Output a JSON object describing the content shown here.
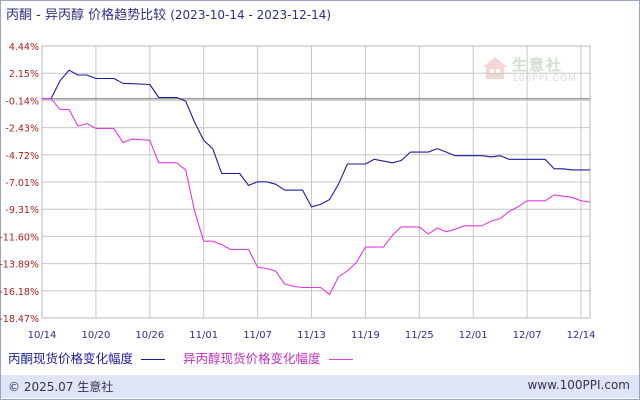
{
  "title": {
    "main": "丙酮 - 异丙醇 价格趋势比较",
    "range": "(2023-10-14 - 2023-12-14)"
  },
  "logo": {
    "name_cn": "生意社",
    "name_en": "100PPI.COM"
  },
  "footer": {
    "left": "© 2025.07 生意社",
    "right": "www.100PPI.com"
  },
  "colors": {
    "series1": "#1c1c9e",
    "series2": "#e23ae2",
    "grid": "#c8c8c8",
    "baseline": "#888888",
    "axis_text": "#b02020",
    "xaxis_text": "#2d2e86",
    "footer_bg": "#dfe4f7"
  },
  "chart_data": {
    "type": "line",
    "title": "丙酮 - 异丙醇 价格趋势比较",
    "x_start": "2023-10-14",
    "x_end": "2023-12-14",
    "xlim": [
      0,
      61
    ],
    "x_ticks": [
      {
        "x": 0,
        "label": "10/14"
      },
      {
        "x": 6,
        "label": "10/20"
      },
      {
        "x": 12,
        "label": "10/26"
      },
      {
        "x": 18,
        "label": "11/01"
      },
      {
        "x": 24,
        "label": "11/07"
      },
      {
        "x": 30,
        "label": "11/13"
      },
      {
        "x": 36,
        "label": "11/19"
      },
      {
        "x": 42,
        "label": "11/25"
      },
      {
        "x": 48,
        "label": "12/01"
      },
      {
        "x": 54,
        "label": "12/07"
      },
      {
        "x": 60,
        "label": "12/14"
      }
    ],
    "y_ticks": [
      {
        "value": 4.44,
        "label": "4.44%"
      },
      {
        "value": 2.15,
        "label": "2.15%"
      },
      {
        "value": -0.14,
        "label": "-0.14%"
      },
      {
        "value": -2.43,
        "label": "-2.43%"
      },
      {
        "value": -4.72,
        "label": "-4.72%"
      },
      {
        "value": -7.01,
        "label": "-7.01%"
      },
      {
        "value": -9.31,
        "label": "-9.31%"
      },
      {
        "value": -11.6,
        "label": "-11.60%"
      },
      {
        "value": -13.89,
        "label": "-13.89%"
      },
      {
        "value": -16.18,
        "label": "-16.18%"
      },
      {
        "value": -18.47,
        "label": "-18.47%"
      }
    ],
    "ylim": [
      -18.47,
      4.44
    ],
    "baseline": 0,
    "grid": true,
    "legend_position": "bottom-left",
    "series": [
      {
        "name": "丙酮现货价格变化幅度",
        "color": "#1c1c9e",
        "points": [
          [
            0,
            0
          ],
          [
            1,
            0
          ],
          [
            2,
            1.5
          ],
          [
            3,
            2.4
          ],
          [
            4,
            2.0
          ],
          [
            5,
            2.0
          ],
          [
            6,
            1.7
          ],
          [
            8,
            1.7
          ],
          [
            9,
            1.3
          ],
          [
            12,
            1.2
          ],
          [
            13,
            0.1
          ],
          [
            15,
            0.1
          ],
          [
            16,
            -0.2
          ],
          [
            17,
            -2.0
          ],
          [
            18,
            -3.5
          ],
          [
            19,
            -4.2
          ],
          [
            20,
            -6.3
          ],
          [
            22,
            -6.3
          ],
          [
            23,
            -7.3
          ],
          [
            24,
            -7.0
          ],
          [
            25,
            -7.0
          ],
          [
            26,
            -7.2
          ],
          [
            27,
            -7.7
          ],
          [
            29,
            -7.7
          ],
          [
            30,
            -9.1
          ],
          [
            31,
            -8.9
          ],
          [
            32,
            -8.5
          ],
          [
            33,
            -7.2
          ],
          [
            34,
            -5.5
          ],
          [
            36,
            -5.5
          ],
          [
            37,
            -5.1
          ],
          [
            39,
            -5.4
          ],
          [
            40,
            -5.2
          ],
          [
            41,
            -4.5
          ],
          [
            43,
            -4.5
          ],
          [
            44,
            -4.2
          ],
          [
            45,
            -4.5
          ],
          [
            46,
            -4.8
          ],
          [
            49,
            -4.8
          ],
          [
            50,
            -4.9
          ],
          [
            51,
            -4.8
          ],
          [
            52,
            -5.1
          ],
          [
            56,
            -5.1
          ],
          [
            57,
            -5.9
          ],
          [
            58,
            -5.9
          ],
          [
            59,
            -6.0
          ],
          [
            61,
            -6.0
          ]
        ]
      },
      {
        "name": "异丙醇现货价格变化幅度",
        "color": "#e23ae2",
        "points": [
          [
            0,
            0
          ],
          [
            1,
            0
          ],
          [
            2,
            -0.9
          ],
          [
            3,
            -0.9
          ],
          [
            4,
            -2.3
          ],
          [
            5,
            -2.1
          ],
          [
            6,
            -2.5
          ],
          [
            8,
            -2.5
          ],
          [
            9,
            -3.7
          ],
          [
            10,
            -3.4
          ],
          [
            12,
            -3.5
          ],
          [
            13,
            -5.4
          ],
          [
            15,
            -5.4
          ],
          [
            16,
            -6.0
          ],
          [
            17,
            -9.5
          ],
          [
            18,
            -12.0
          ],
          [
            19,
            -12.0
          ],
          [
            20,
            -12.3
          ],
          [
            21,
            -12.7
          ],
          [
            23,
            -12.7
          ],
          [
            24,
            -14.2
          ],
          [
            25,
            -14.3
          ],
          [
            26,
            -14.5
          ],
          [
            27,
            -15.6
          ],
          [
            28,
            -15.8
          ],
          [
            29,
            -15.9
          ],
          [
            31,
            -15.9
          ],
          [
            32,
            -16.5
          ],
          [
            33,
            -15.0
          ],
          [
            34,
            -14.5
          ],
          [
            35,
            -13.8
          ],
          [
            36,
            -12.5
          ],
          [
            38,
            -12.5
          ],
          [
            39,
            -11.5
          ],
          [
            40,
            -10.8
          ],
          [
            42,
            -10.8
          ],
          [
            43,
            -11.4
          ],
          [
            44,
            -10.9
          ],
          [
            45,
            -11.2
          ],
          [
            46,
            -11.0
          ],
          [
            47,
            -10.7
          ],
          [
            49,
            -10.7
          ],
          [
            50,
            -10.3
          ],
          [
            51,
            -10.1
          ],
          [
            52,
            -9.5
          ],
          [
            53,
            -9.1
          ],
          [
            54,
            -8.6
          ],
          [
            56,
            -8.6
          ],
          [
            57,
            -8.1
          ],
          [
            59,
            -8.3
          ],
          [
            60,
            -8.6
          ],
          [
            61,
            -8.7
          ]
        ]
      }
    ]
  }
}
